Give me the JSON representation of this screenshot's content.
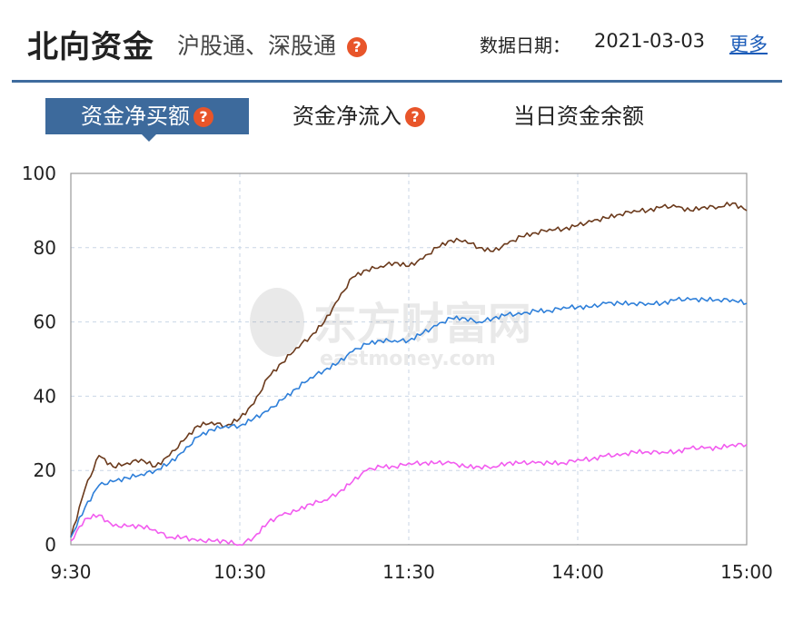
{
  "header": {
    "title": "北向资金",
    "subtitle": "沪股通、深股通",
    "date_label": "数据日期：",
    "date_value": "2021-03-03",
    "more_label": "更多"
  },
  "tabs": [
    {
      "label": "资金净买额",
      "active": true,
      "has_help": true
    },
    {
      "label": "资金净流入",
      "active": false,
      "has_help": true
    },
    {
      "label": "当日资金余额",
      "active": false,
      "has_help": false
    }
  ],
  "watermark": {
    "cn": "东方财富网",
    "en": "eastmoney.com"
  },
  "colors": {
    "accent": "#3d6a9c",
    "help": "#e8552a",
    "total": "#6b3a1c",
    "blue": "#2e7fd9",
    "pink": "#f25bef"
  },
  "chart_data": {
    "type": "line",
    "x": [
      "9:30",
      "9:35",
      "9:40",
      "9:45",
      "9:50",
      "9:55",
      "10:00",
      "10:05",
      "10:10",
      "10:15",
      "10:20",
      "10:25",
      "10:30",
      "10:35",
      "10:40",
      "10:45",
      "10:50",
      "10:55",
      "11:00",
      "11:05",
      "11:10",
      "11:15",
      "11:20",
      "11:25",
      "11:30",
      "13:05",
      "13:10",
      "13:15",
      "13:20",
      "13:25",
      "13:30",
      "13:35",
      "13:40",
      "13:45",
      "13:50",
      "13:55",
      "14:00",
      "14:05",
      "14:10",
      "14:15",
      "14:20",
      "14:25",
      "14:30",
      "14:35",
      "14:40",
      "14:45",
      "14:50",
      "14:55",
      "15:00"
    ],
    "xticks": [
      "9:30",
      "10:30",
      "11:30",
      "14:00",
      "15:00"
    ],
    "yticks": [
      0,
      20,
      40,
      60,
      80,
      100
    ],
    "ylim": [
      0,
      100
    ],
    "grid": true,
    "series": [
      {
        "color": "#6b3a1c",
        "values": [
          2,
          15,
          24,
          21,
          22,
          23,
          21,
          24,
          28,
          32,
          33,
          32,
          34,
          38,
          45,
          49,
          53,
          56,
          60,
          66,
          72,
          74,
          75,
          76,
          75,
          77,
          80,
          82,
          82,
          80,
          79,
          81,
          83,
          84,
          85,
          85,
          86,
          87,
          88,
          89,
          90,
          90,
          91,
          91,
          90,
          91,
          91,
          92,
          90
        ]
      },
      {
        "color": "#2e7fd9",
        "values": [
          2,
          10,
          16,
          17,
          18,
          19,
          20,
          22,
          25,
          29,
          31,
          32,
          32,
          34,
          36,
          39,
          42,
          45,
          47,
          49,
          52,
          54,
          55,
          55,
          55,
          57,
          59,
          61,
          61,
          60,
          61,
          62,
          62,
          63,
          63,
          64,
          64,
          64,
          65,
          65,
          65,
          65,
          65,
          66,
          66,
          66,
          66,
          66,
          65
        ]
      },
      {
        "color": "#f25bef",
        "values": [
          1,
          7,
          8,
          5,
          5,
          5,
          4,
          2,
          2,
          1,
          1,
          1,
          0,
          2,
          6,
          8,
          9,
          11,
          12,
          14,
          17,
          20,
          21,
          21,
          22,
          22,
          22,
          22,
          21,
          21,
          21,
          22,
          22,
          22,
          22,
          22,
          23,
          23,
          24,
          24,
          25,
          25,
          25,
          25,
          26,
          26,
          26,
          27,
          27
        ]
      }
    ]
  }
}
